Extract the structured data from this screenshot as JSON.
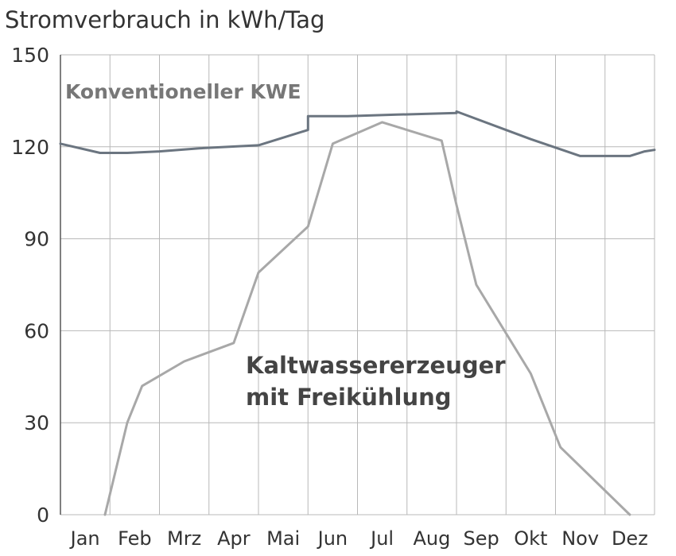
{
  "chart_data": {
    "type": "line",
    "title": "Stromverbrauch in kWh/Tag",
    "xlabel": "",
    "ylabel": "",
    "ylim": [
      0,
      150
    ],
    "yticks": [
      0,
      30,
      60,
      90,
      120,
      150
    ],
    "categories": [
      "Jan",
      "Feb",
      "Mrz",
      "Apr",
      "Mai",
      "Jun",
      "Jul",
      "Aug",
      "Sep",
      "Okt",
      "Nov",
      "Dez"
    ],
    "grid": true,
    "series": [
      {
        "name": "Konventioneller KWE",
        "color": "#6b7580",
        "points": [
          [
            0.0,
            121
          ],
          [
            0.8,
            118
          ],
          [
            1.35,
            118
          ],
          [
            2.0,
            118.5
          ],
          [
            2.8,
            119.5
          ],
          [
            4.0,
            120.5
          ],
          [
            5.0,
            125.5
          ],
          [
            5.0,
            130
          ],
          [
            5.8,
            130
          ],
          [
            6.8,
            130.5
          ],
          [
            8.0,
            131
          ],
          [
            8.0,
            131.5
          ],
          [
            9.5,
            122.5
          ],
          [
            10.5,
            117
          ],
          [
            11.5,
            117
          ],
          [
            11.8,
            118.5
          ],
          [
            12.0,
            119
          ]
        ]
      },
      {
        "name": "Kaltwassererzeuger mit Freikühlung",
        "color": "#a8a8a8",
        "points": [
          [
            0.9,
            0
          ],
          [
            1.35,
            30
          ],
          [
            1.65,
            42
          ],
          [
            2.5,
            50
          ],
          [
            3.5,
            56
          ],
          [
            4.0,
            79
          ],
          [
            5.0,
            94
          ],
          [
            5.5,
            121
          ],
          [
            6.5,
            128
          ],
          [
            7.7,
            122
          ],
          [
            8.0,
            101
          ],
          [
            8.4,
            75
          ],
          [
            9.5,
            46
          ],
          [
            10.1,
            22
          ],
          [
            11.5,
            0
          ]
        ]
      }
    ],
    "annotations": [
      {
        "text": "Konventioneller KWE",
        "series": 0
      },
      {
        "text": "Kaltwassererzeuger",
        "series": 1
      },
      {
        "text": "mit Freikühlung",
        "series": 1
      }
    ]
  }
}
